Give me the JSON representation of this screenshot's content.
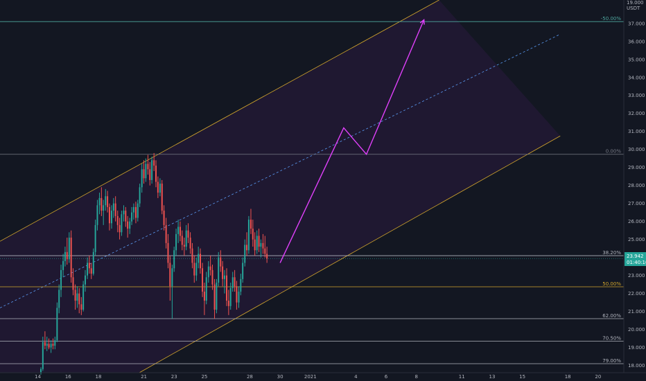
{
  "chart_data": {
    "type": "candlestick",
    "symbol_header": "19.000",
    "currency": "USDT",
    "x_ticks": [
      {
        "label": "14",
        "day": 14
      },
      {
        "label": "16",
        "day": 16
      },
      {
        "label": "18",
        "day": 18
      },
      {
        "label": "21",
        "day": 21
      },
      {
        "label": "23",
        "day": 23
      },
      {
        "label": "25",
        "day": 25
      },
      {
        "label": "28",
        "day": 28
      },
      {
        "label": "30",
        "day": 30
      },
      {
        "label": "2021",
        "day": 32
      },
      {
        "label": "4",
        "day": 35
      },
      {
        "label": "6",
        "day": 37
      },
      {
        "label": "8",
        "day": 39
      },
      {
        "label": "11",
        "day": 42
      },
      {
        "label": "13",
        "day": 44
      },
      {
        "label": "15",
        "day": 46
      },
      {
        "label": "18",
        "day": 49
      },
      {
        "label": "20",
        "day": 51
      }
    ],
    "y_ticks": [
      "18.000",
      "19.000",
      "20.000",
      "21.000",
      "22.000",
      "23.000",
      "24.000",
      "25.000",
      "26.000",
      "27.000",
      "28.000",
      "29.000",
      "30.000",
      "31.000",
      "32.000",
      "33.000",
      "34.000",
      "35.000",
      "36.000",
      "37.000"
    ],
    "ylim": [
      17.6,
      38.3
    ],
    "xlim": [
      11.5,
      52.7
    ],
    "last_price": {
      "value": 23.942,
      "label": "23.942",
      "countdown": "01:40:16"
    },
    "fib_levels": [
      {
        "label": "-50.00%",
        "price": 37.1,
        "color": "#4fa8a0"
      },
      {
        "label": "0.00%",
        "price": 29.73,
        "color": "#787b86"
      },
      {
        "label": "38.20%",
        "price": 24.1,
        "color": "#b2b5be"
      },
      {
        "label": "50.00%",
        "price": 22.37,
        "color": "#d4a72c"
      },
      {
        "label": "62.00%",
        "price": 20.6,
        "color": "#b2b5be"
      },
      {
        "label": "70.50%",
        "price": 19.35,
        "color": "#b2b5be"
      },
      {
        "label": "79.00%",
        "price": 18.1,
        "color": "#b2b5be"
      }
    ],
    "channel": {
      "upper": [
        {
          "day": 11.5,
          "price": 24.9
        },
        {
          "day": 40.5,
          "price": 38.3
        }
      ],
      "lower": [
        {
          "day": 20.7,
          "price": 17.6
        },
        {
          "day": 48.5,
          "price": 30.75
        }
      ],
      "middle": [
        {
          "day": 11.5,
          "price": 21.2
        },
        {
          "day": 48.5,
          "price": 36.4
        }
      ],
      "color": "#d4a72c",
      "fill": "#7b1fa2"
    },
    "projection": {
      "color": "#e040fb",
      "points": [
        {
          "day": 30.0,
          "price": 23.7
        },
        {
          "day": 34.2,
          "price": 31.2
        },
        {
          "day": 35.7,
          "price": 29.73
        },
        {
          "day": 39.5,
          "price": 37.2
        }
      ]
    },
    "candles": [
      [
        14.2,
        17.6,
        17.9,
        17.5,
        17.8
      ],
      [
        14.33,
        17.8,
        19.6,
        17.7,
        19.3
      ],
      [
        14.47,
        19.3,
        19.9,
        18.9,
        19.1
      ],
      [
        14.6,
        19.1,
        19.6,
        18.8,
        19.2
      ],
      [
        14.73,
        19.2,
        19.5,
        18.9,
        19.0
      ],
      [
        14.87,
        19.0,
        19.4,
        18.7,
        19.2
      ],
      [
        15.0,
        19.2,
        19.5,
        18.9,
        19.1
      ],
      [
        15.13,
        19.1,
        19.6,
        18.9,
        19.4
      ],
      [
        15.27,
        19.4,
        21.5,
        19.3,
        21.2
      ],
      [
        15.4,
        21.2,
        22.5,
        20.9,
        22.2
      ],
      [
        15.53,
        22.2,
        23.6,
        21.8,
        23.3
      ],
      [
        15.67,
        23.3,
        24.2,
        22.9,
        23.8
      ],
      [
        15.8,
        23.8,
        24.6,
        23.5,
        24.3
      ],
      [
        15.93,
        24.3,
        25.1,
        23.6,
        23.9
      ],
      [
        16.07,
        23.9,
        25.4,
        23.7,
        25.1
      ],
      [
        16.2,
        25.1,
        25.5,
        22.6,
        22.9
      ],
      [
        16.33,
        22.9,
        23.4,
        21.9,
        22.2
      ],
      [
        16.47,
        22.2,
        22.5,
        21.1,
        21.6
      ],
      [
        16.6,
        21.6,
        22.4,
        21.2,
        22.0
      ],
      [
        16.73,
        22.0,
        22.3,
        20.9,
        21.4
      ],
      [
        16.87,
        21.4,
        21.8,
        20.8,
        21.1
      ],
      [
        17.0,
        21.1,
        22.7,
        21.0,
        22.5
      ],
      [
        17.13,
        22.5,
        23.3,
        22.1,
        23.0
      ],
      [
        17.27,
        23.0,
        24.0,
        22.8,
        23.7
      ],
      [
        17.4,
        23.7,
        24.1,
        23.1,
        23.4
      ],
      [
        17.53,
        23.4,
        23.7,
        22.8,
        23.1
      ],
      [
        17.67,
        23.1,
        24.5,
        23.0,
        24.3
      ],
      [
        17.8,
        24.3,
        26.1,
        24.1,
        25.8
      ],
      [
        17.93,
        25.8,
        27.2,
        25.5,
        26.9
      ],
      [
        18.07,
        26.9,
        27.6,
        26.4,
        27.3
      ],
      [
        18.2,
        27.3,
        27.9,
        26.3,
        26.6
      ],
      [
        18.33,
        26.6,
        27.2,
        25.8,
        26.9
      ],
      [
        18.47,
        26.9,
        27.8,
        26.6,
        27.4
      ],
      [
        18.6,
        27.4,
        27.7,
        26.5,
        26.8
      ],
      [
        18.73,
        26.8,
        27.0,
        25.5,
        25.9
      ],
      [
        18.87,
        25.9,
        26.9,
        25.6,
        26.6
      ],
      [
        19.0,
        26.6,
        27.3,
        26.2,
        27.0
      ],
      [
        19.13,
        27.0,
        27.4,
        26.0,
        26.3
      ],
      [
        19.27,
        26.3,
        26.6,
        25.4,
        25.8
      ],
      [
        19.4,
        25.8,
        26.2,
        25.0,
        25.4
      ],
      [
        19.53,
        25.4,
        26.6,
        25.2,
        26.4
      ],
      [
        19.67,
        26.4,
        26.9,
        26.0,
        26.6
      ],
      [
        19.8,
        26.6,
        26.8,
        25.7,
        26.0
      ],
      [
        19.93,
        26.0,
        26.3,
        25.1,
        25.6
      ],
      [
        20.07,
        25.6,
        26.2,
        25.3,
        26.0
      ],
      [
        20.2,
        26.0,
        26.8,
        25.8,
        26.5
      ],
      [
        20.33,
        26.5,
        27.0,
        26.1,
        26.8
      ],
      [
        20.47,
        26.8,
        27.1,
        25.9,
        26.2
      ],
      [
        20.6,
        26.2,
        27.2,
        26.0,
        27.0
      ],
      [
        20.73,
        27.0,
        28.1,
        26.8,
        27.9
      ],
      [
        20.87,
        27.9,
        29.2,
        27.6,
        28.9
      ],
      [
        21.0,
        28.9,
        29.4,
        28.1,
        28.4
      ],
      [
        21.13,
        28.4,
        29.5,
        28.2,
        29.2
      ],
      [
        21.27,
        29.2,
        29.7,
        28.6,
        28.9
      ],
      [
        21.4,
        28.9,
        29.3,
        28.0,
        28.3
      ],
      [
        21.53,
        28.3,
        29.6,
        28.1,
        29.4
      ],
      [
        21.67,
        29.4,
        29.8,
        28.8,
        29.1
      ],
      [
        21.8,
        29.1,
        29.4,
        27.9,
        28.2
      ],
      [
        21.93,
        28.2,
        28.5,
        27.3,
        27.6
      ],
      [
        22.07,
        27.6,
        28.4,
        27.4,
        28.1
      ],
      [
        22.2,
        28.1,
        28.3,
        26.4,
        26.6
      ],
      [
        22.33,
        26.6,
        26.9,
        25.5,
        25.8
      ],
      [
        22.47,
        25.8,
        26.2,
        24.5,
        24.8
      ],
      [
        22.6,
        24.8,
        25.3,
        23.4,
        23.7
      ],
      [
        22.73,
        23.7,
        24.1,
        21.6,
        22.4
      ],
      [
        22.87,
        22.4,
        23.6,
        20.6,
        23.4
      ],
      [
        23.0,
        23.4,
        24.6,
        23.2,
        24.4
      ],
      [
        23.13,
        24.4,
        25.6,
        24.1,
        25.3
      ],
      [
        23.27,
        25.3,
        26.1,
        24.8,
        25.7
      ],
      [
        23.4,
        25.7,
        26.0,
        24.9,
        25.2
      ],
      [
        23.53,
        25.2,
        25.5,
        24.4,
        24.7
      ],
      [
        23.67,
        24.7,
        25.1,
        24.1,
        24.6
      ],
      [
        23.8,
        24.6,
        25.8,
        24.4,
        25.5
      ],
      [
        23.93,
        25.5,
        25.9,
        24.8,
        25.1
      ],
      [
        24.07,
        25.1,
        25.4,
        24.2,
        24.5
      ],
      [
        24.2,
        24.5,
        24.8,
        23.4,
        23.7
      ],
      [
        24.33,
        23.7,
        24.1,
        22.6,
        23.0
      ],
      [
        24.47,
        23.0,
        24.0,
        22.7,
        23.7
      ],
      [
        24.6,
        23.7,
        24.6,
        23.4,
        24.2
      ],
      [
        24.73,
        24.2,
        24.5,
        23.1,
        23.4
      ],
      [
        24.87,
        23.4,
        23.7,
        21.8,
        22.1
      ],
      [
        25.0,
        22.1,
        22.6,
        20.8,
        21.6
      ],
      [
        25.13,
        21.6,
        23.2,
        21.4,
        22.9
      ],
      [
        25.27,
        22.9,
        23.8,
        22.6,
        23.5
      ],
      [
        25.4,
        23.5,
        24.1,
        23.0,
        23.3
      ],
      [
        25.53,
        23.3,
        23.6,
        22.2,
        22.5
      ],
      [
        25.67,
        22.5,
        22.8,
        20.6,
        21.1
      ],
      [
        25.8,
        21.1,
        22.8,
        20.9,
        22.6
      ],
      [
        25.93,
        22.6,
        24.3,
        22.4,
        24.0
      ],
      [
        26.07,
        24.0,
        24.4,
        23.2,
        23.5
      ],
      [
        26.2,
        23.5,
        23.8,
        22.4,
        22.8
      ],
      [
        26.33,
        22.8,
        23.3,
        22.0,
        23.0
      ],
      [
        26.47,
        23.0,
        23.4,
        21.3,
        21.6
      ],
      [
        26.6,
        21.6,
        22.2,
        20.8,
        21.3
      ],
      [
        26.73,
        21.3,
        22.6,
        21.1,
        22.3
      ],
      [
        26.87,
        22.3,
        23.2,
        22.1,
        22.9
      ],
      [
        27.0,
        22.9,
        23.3,
        22.1,
        22.4
      ],
      [
        27.13,
        22.4,
        22.7,
        21.1,
        21.5
      ],
      [
        27.27,
        21.5,
        22.4,
        21.2,
        22.1
      ],
      [
        27.4,
        22.1,
        23.1,
        21.9,
        22.8
      ],
      [
        27.53,
        22.8,
        24.0,
        22.6,
        23.7
      ],
      [
        27.67,
        23.7,
        25.0,
        23.5,
        24.7
      ],
      [
        27.8,
        24.7,
        25.4,
        24.1,
        24.4
      ],
      [
        27.93,
        24.4,
        26.3,
        24.2,
        26.1
      ],
      [
        28.07,
        26.1,
        26.7,
        25.3,
        25.6
      ],
      [
        28.2,
        25.6,
        26.1,
        24.6,
        25.0
      ],
      [
        28.33,
        25.0,
        25.4,
        24.1,
        24.4
      ],
      [
        28.47,
        24.4,
        25.5,
        24.2,
        25.2
      ],
      [
        28.6,
        25.2,
        25.6,
        24.3,
        24.6
      ],
      [
        28.73,
        24.6,
        25.0,
        24.0,
        24.8
      ],
      [
        28.87,
        24.8,
        25.3,
        24.2,
        24.5
      ],
      [
        29.0,
        24.5,
        25.2,
        24.0,
        24.2
      ],
      [
        29.13,
        24.2,
        24.6,
        23.7,
        23.942
      ]
    ],
    "candle_colors": {
      "up": "#26a69a",
      "down": "#ef5350"
    }
  }
}
